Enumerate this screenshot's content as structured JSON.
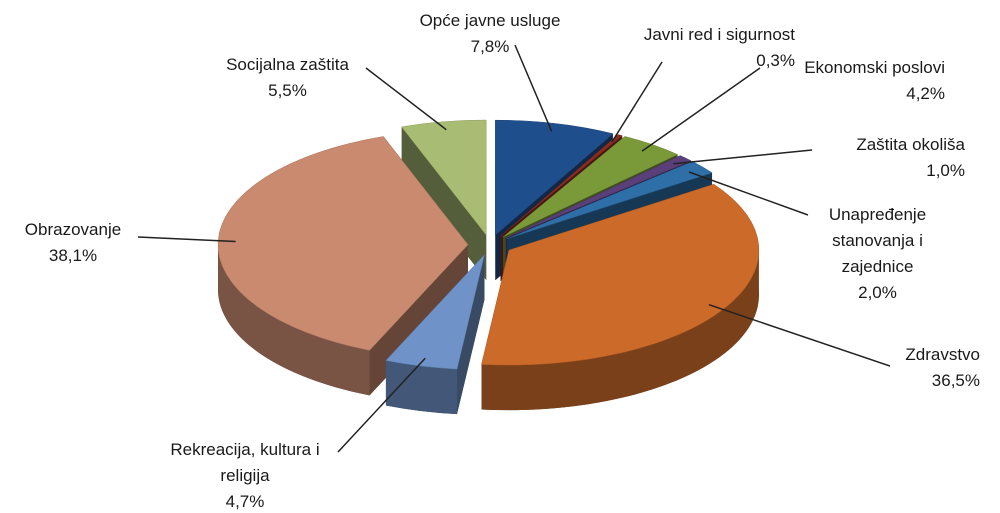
{
  "chart_data": {
    "type": "pie3d",
    "categories": [
      "Opće javne usluge",
      "Javni red i sigurnost",
      "Ekonomski poslovi",
      "Zaštita okoliša",
      "Unapređenje stanovanja i zajednice",
      "Zdravstvo",
      "Rekreacija, kultura i religija",
      "Obrazovanje",
      "Socijalna zaštita"
    ],
    "values": [
      7.8,
      0.3,
      4.2,
      1.0,
      2.0,
      36.5,
      4.7,
      38.1,
      5.5
    ],
    "value_labels": [
      "7,8%",
      "0,3%",
      "4,2%",
      "1,0%",
      "2,0%",
      "36,5%",
      "4,7%",
      "38,1%",
      "5,5%"
    ],
    "colors": [
      "#1f4e8c",
      "#8b2c22",
      "#7a9a3a",
      "#5b3f7a",
      "#2e6fa8",
      "#cc6a2a",
      "#6f93c8",
      "#c98a6f",
      "#a9bc73"
    ]
  }
}
